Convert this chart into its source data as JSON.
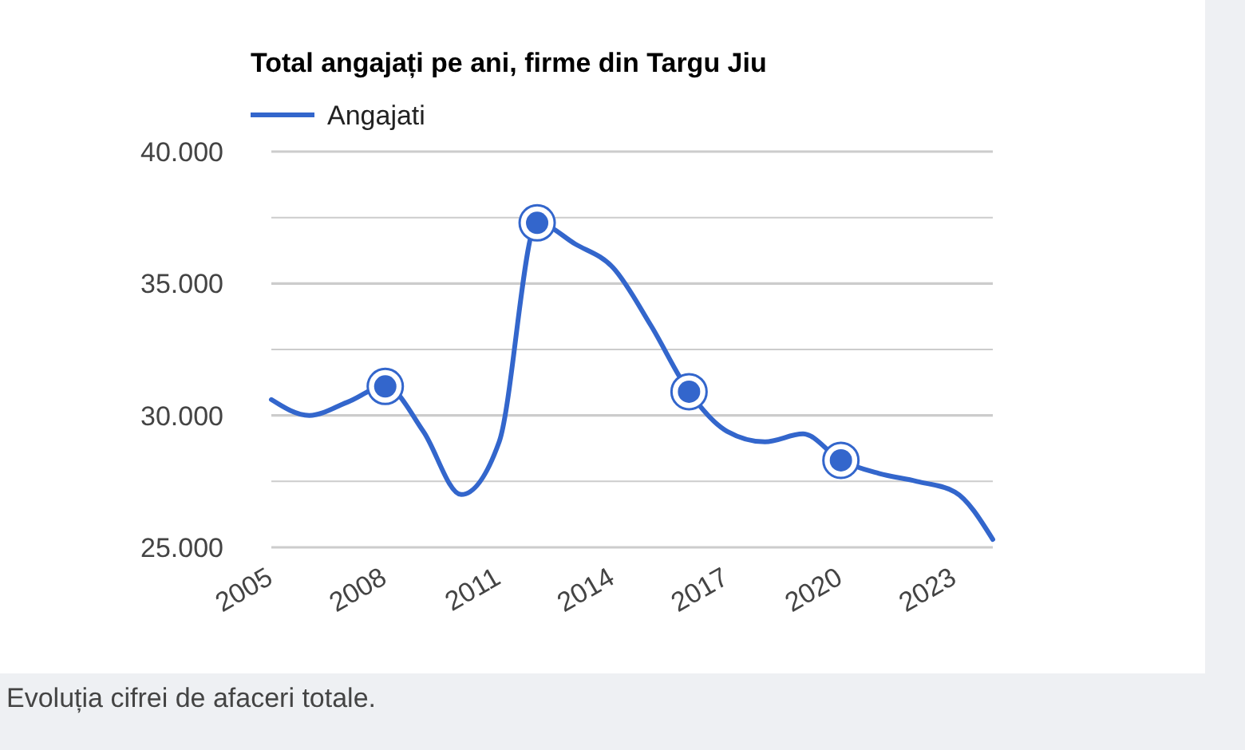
{
  "chart_data": {
    "type": "line",
    "title": "Total angajați pe ani, firme din Targu Jiu",
    "annotations": [
      "Evoluția cifrei de afaceri totale."
    ],
    "x": [
      2005,
      2006,
      2007,
      2008,
      2009,
      2010,
      2011,
      2012,
      2013,
      2014,
      2015,
      2016,
      2017,
      2018,
      2019,
      2020,
      2021,
      2022,
      2023,
      2024
    ],
    "series": [
      {
        "name": "Angajati",
        "color": "#3366cc",
        "marker": "none",
        "values": [
          30600,
          30000,
          30500,
          31100,
          29400,
          27000,
          29000,
          37300,
          36500,
          35600,
          33400,
          30900,
          29400,
          29000,
          29300,
          28300,
          27800,
          27500,
          27100,
          25300
        ]
      },
      {
        "type": "scatter",
        "color": "#3366cc",
        "marker": "circle",
        "x": [
          2008,
          2012,
          2016,
          2020
        ],
        "values": [
          31100,
          37300,
          30900,
          28300
        ]
      }
    ],
    "xlim": [
      2005,
      2024
    ],
    "xticks": [
      2005,
      2008,
      2011,
      2014,
      2017,
      2020,
      2023
    ],
    "ylim": [
      25000,
      40000
    ],
    "yticks": [
      {
        "value": 25000,
        "label": "25.000"
      },
      {
        "value": 27500,
        "label": null
      },
      {
        "value": 30000,
        "label": "30.000"
      },
      {
        "value": 32500,
        "label": null
      },
      {
        "value": 35000,
        "label": "35.000"
      },
      {
        "value": 37500,
        "label": null
      },
      {
        "value": 40000,
        "label": "40.000"
      }
    ],
    "grid": "y",
    "legend": "top left",
    "line_style": "solid"
  }
}
